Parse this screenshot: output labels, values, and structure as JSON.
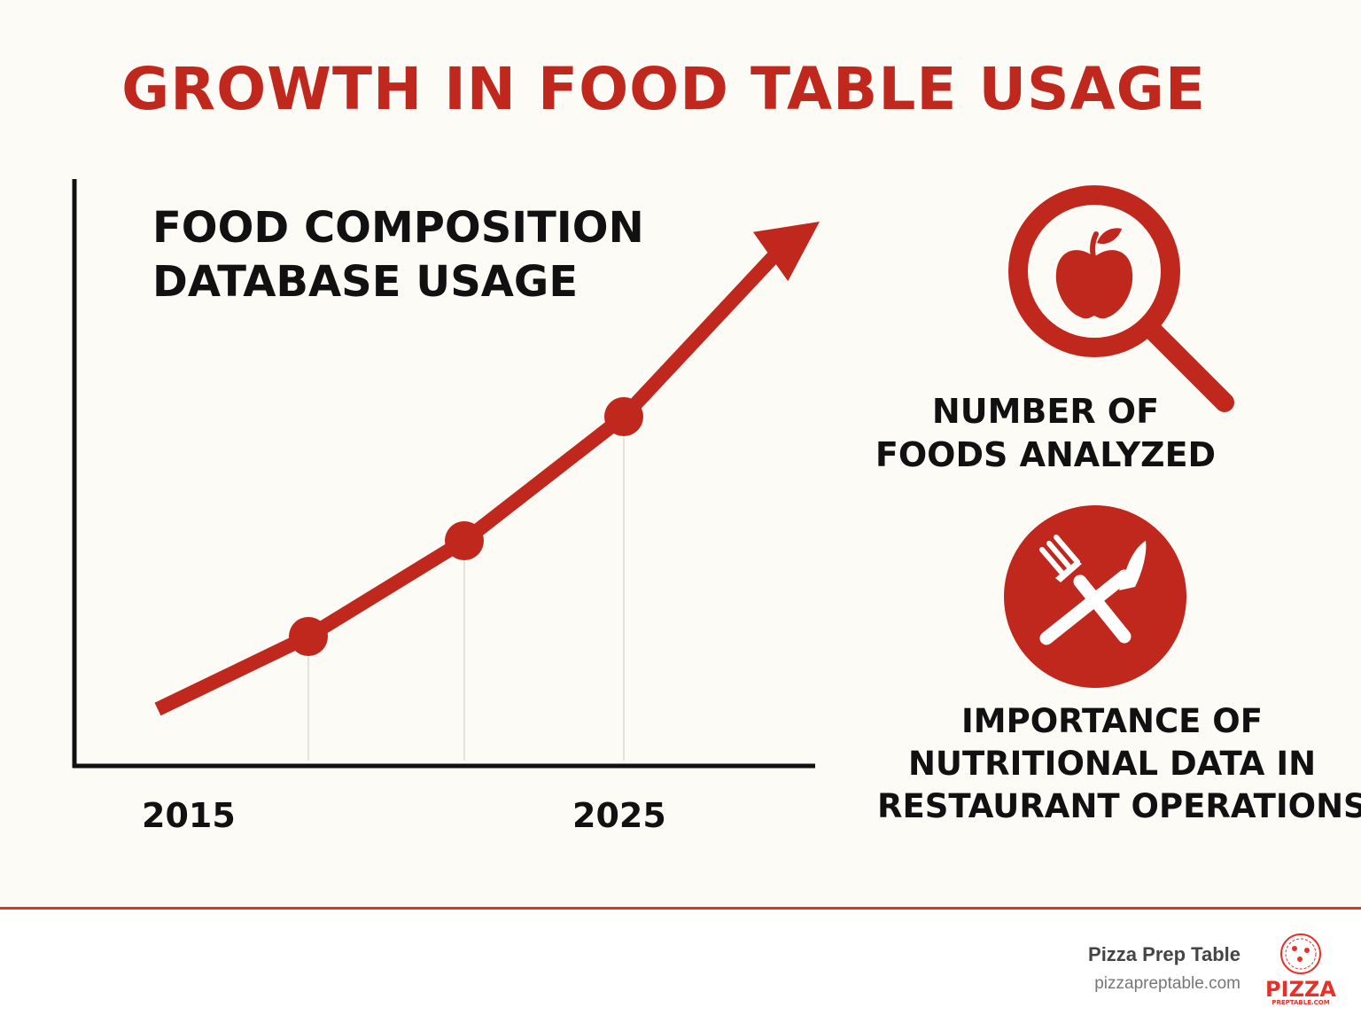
{
  "title": "GROWTH IN FOOD TABLE USAGE",
  "chart_data": {
    "type": "line",
    "title": [
      "FOOD COMPOSITION",
      "DATABASE USAGE"
    ],
    "x_tick_labels": [
      "2015",
      "2025"
    ],
    "y_tick_labels": [],
    "trend": "increasing",
    "markers": 3,
    "arrow_end": true
  },
  "side_labels": {
    "foods": [
      "NUMBER OF",
      "FOODS ANALYZED"
    ],
    "importance": [
      "IMPORTANCE OF",
      "NUTRITIONAL DATA IN",
      "RESTAURANT OPERATIONS"
    ]
  },
  "icons": {
    "search": "magnifier-apple-icon",
    "utensils": "fork-knife-icon",
    "logo": "pizza-logo-icon"
  },
  "colors": {
    "accent": "#c0281e",
    "footer_line": "#e8302a",
    "background": "#fcfbf6"
  },
  "footer": {
    "brand_name": "Pizza Prep Table",
    "brand_url": "pizzapreptable.com",
    "logo_word": "PIZZA",
    "logo_sub": "PREPTABLE.COM"
  }
}
